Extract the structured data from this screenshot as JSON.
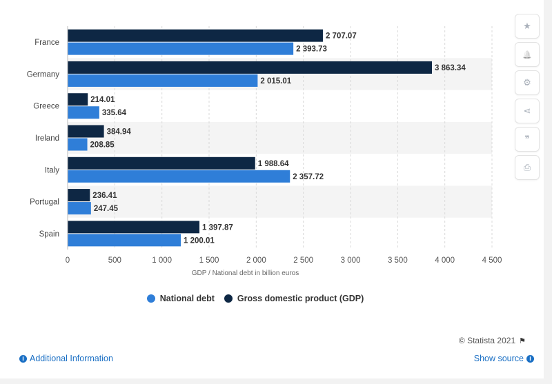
{
  "colors": {
    "national_debt": "#2f7ed8",
    "gdp": "#0e2744",
    "band": "#f4f4f4",
    "link": "#1a6fc4"
  },
  "toolbar": {
    "buttons": [
      {
        "icon": "star-icon",
        "glyph": "★"
      },
      {
        "icon": "bell-icon",
        "glyph": "🔔"
      },
      {
        "icon": "gear-icon",
        "glyph": "⚙"
      },
      {
        "icon": "share-icon",
        "glyph": "⋖"
      },
      {
        "icon": "quote-icon",
        "glyph": "❞"
      },
      {
        "icon": "print-icon",
        "glyph": "⎙"
      }
    ]
  },
  "legend": {
    "national_debt": "National debt",
    "gdp": "Gross domestic product (GDP)"
  },
  "footer": {
    "credit": "© Statista 2021",
    "flag_glyph": "⚑",
    "additional_info": "Additional Information",
    "show_source": "Show source",
    "info_glyph": "i"
  },
  "chart_data": {
    "type": "bar",
    "orientation": "horizontal",
    "categories": [
      "France",
      "Germany",
      "Greece",
      "Ireland",
      "Italy",
      "Portugal",
      "Spain"
    ],
    "series": [
      {
        "name": "Gross domestic product (GDP)",
        "values": [
          2707.07,
          3863.34,
          214.01,
          384.94,
          1988.64,
          236.41,
          1397.87
        ],
        "labels": [
          "2 707.07",
          "3 863.34",
          "214.01",
          "384.94",
          "1 988.64",
          "236.41",
          "1 397.87"
        ]
      },
      {
        "name": "National debt",
        "values": [
          2393.73,
          2015.01,
          335.64,
          208.85,
          2357.72,
          247.45,
          1200.01
        ],
        "labels": [
          "2 393.73",
          "2 015.01",
          "335.64",
          "208.85",
          "2 357.72",
          "247.45",
          "1 200.01"
        ]
      }
    ],
    "xlabel": "GDP / National debt in billion euros",
    "xlim": [
      0,
      4500
    ],
    "xticks": [
      0,
      500,
      1000,
      1500,
      2000,
      2500,
      3000,
      3500,
      4000,
      4500
    ],
    "xtick_labels": [
      "0",
      "500",
      "1 000",
      "1 500",
      "2 000",
      "2 500",
      "3 000",
      "3 500",
      "4 000",
      "4 500"
    ],
    "grid": true,
    "legend_position": "bottom"
  }
}
